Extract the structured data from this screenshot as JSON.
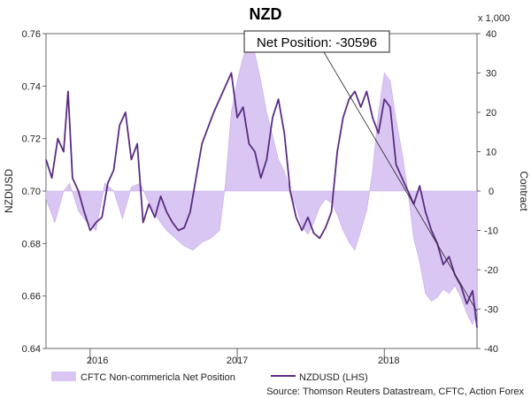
{
  "chart_data": {
    "type": "line",
    "title": "NZD",
    "ylabel_left": "NZDUSD",
    "ylabel_right": "Contract",
    "right_axis_multiplier": "x 1,000",
    "x_tick_labels": [
      "2016",
      "2017",
      "2018"
    ],
    "ylim_left": [
      0.64,
      0.76
    ],
    "yticks_left": [
      "0.76",
      "0.74",
      "0.72",
      "0.70",
      "0.68",
      "0.66",
      "0.64"
    ],
    "ylim_right": [
      -40,
      40
    ],
    "yticks_right": [
      "40",
      "30",
      "20",
      "10",
      "0",
      "-10",
      "-20",
      "-30",
      "-40"
    ],
    "grid": false,
    "legend_position": "bottom-left",
    "annotation": "Net Position: -30596",
    "source": "Source: Thomson Reuters Datastream, CFTC, Action Forex",
    "series": [
      {
        "name": "CFTC Non-commericla Net Position",
        "axis": "right",
        "kind": "area",
        "color": "#d9c6f2",
        "x": [
          2015.7,
          2015.76,
          2015.82,
          2015.86,
          2015.92,
          2015.98,
          2016.04,
          2016.1,
          2016.16,
          2016.22,
          2016.28,
          2016.34,
          2016.4,
          2016.46,
          2016.52,
          2016.58,
          2016.64,
          2016.7,
          2016.76,
          2016.82,
          2016.88,
          2016.92,
          2016.96,
          2017.0,
          2017.04,
          2017.08,
          2017.12,
          2017.16,
          2017.2,
          2017.24,
          2017.28,
          2017.32,
          2017.36,
          2017.4,
          2017.44,
          2017.48,
          2017.52,
          2017.56,
          2017.6,
          2017.64,
          2017.68,
          2017.72,
          2017.76,
          2017.8,
          2017.84,
          2017.88,
          2017.92,
          2017.96,
          2018.0,
          2018.04,
          2018.08,
          2018.12,
          2018.16,
          2018.2,
          2018.24,
          2018.28,
          2018.32,
          2018.36,
          2018.4,
          2018.44,
          2018.48,
          2018.52,
          2018.56,
          2018.6,
          2018.63
        ],
        "values": [
          -2,
          -8,
          0,
          2,
          -5,
          -8,
          -10,
          2,
          0,
          -7,
          1,
          2,
          -3,
          -7,
          -10,
          -12,
          -14,
          -15,
          -13,
          -12,
          -10,
          2,
          20,
          28,
          34,
          38,
          35,
          28,
          20,
          14,
          8,
          5,
          0,
          -4,
          -9,
          -11,
          -8,
          -4,
          -2,
          -3,
          -6,
          -10,
          -13,
          -15,
          -10,
          -5,
          5,
          20,
          30,
          28,
          18,
          10,
          0,
          -12,
          -18,
          -26,
          -28,
          -27,
          -25,
          -26,
          -24,
          -27,
          -31,
          -34,
          -30.6
        ]
      },
      {
        "name": "NZDUSD (LHS)",
        "axis": "left",
        "kind": "line",
        "color": "#5b2c83",
        "x": [
          2015.7,
          2015.74,
          2015.78,
          2015.82,
          2015.85,
          2015.88,
          2015.92,
          2015.96,
          2016.0,
          2016.04,
          2016.08,
          2016.12,
          2016.16,
          2016.2,
          2016.24,
          2016.28,
          2016.32,
          2016.36,
          2016.4,
          2016.44,
          2016.48,
          2016.52,
          2016.56,
          2016.6,
          2016.64,
          2016.68,
          2016.72,
          2016.76,
          2016.8,
          2016.84,
          2016.88,
          2016.92,
          2016.96,
          2017.0,
          2017.04,
          2017.08,
          2017.12,
          2017.16,
          2017.2,
          2017.24,
          2017.28,
          2017.32,
          2017.36,
          2017.4,
          2017.44,
          2017.48,
          2017.52,
          2017.56,
          2017.6,
          2017.64,
          2017.68,
          2017.72,
          2017.76,
          2017.8,
          2017.84,
          2017.88,
          2017.92,
          2017.96,
          2018.0,
          2018.04,
          2018.08,
          2018.12,
          2018.16,
          2018.2,
          2018.24,
          2018.28,
          2018.32,
          2018.36,
          2018.4,
          2018.44,
          2018.48,
          2018.52,
          2018.56,
          2018.6,
          2018.63
        ],
        "values": [
          0.712,
          0.705,
          0.72,
          0.715,
          0.738,
          0.705,
          0.7,
          0.692,
          0.685,
          0.688,
          0.69,
          0.703,
          0.708,
          0.725,
          0.73,
          0.712,
          0.718,
          0.688,
          0.695,
          0.69,
          0.698,
          0.692,
          0.688,
          0.685,
          0.686,
          0.692,
          0.705,
          0.718,
          0.724,
          0.73,
          0.735,
          0.74,
          0.745,
          0.728,
          0.732,
          0.718,
          0.715,
          0.705,
          0.712,
          0.728,
          0.735,
          0.722,
          0.7,
          0.69,
          0.685,
          0.69,
          0.684,
          0.682,
          0.686,
          0.692,
          0.715,
          0.728,
          0.735,
          0.738,
          0.732,
          0.738,
          0.728,
          0.722,
          0.735,
          0.732,
          0.71,
          0.705,
          0.7,
          0.695,
          0.702,
          0.692,
          0.685,
          0.68,
          0.672,
          0.675,
          0.668,
          0.664,
          0.657,
          0.662,
          0.648
        ]
      }
    ]
  }
}
